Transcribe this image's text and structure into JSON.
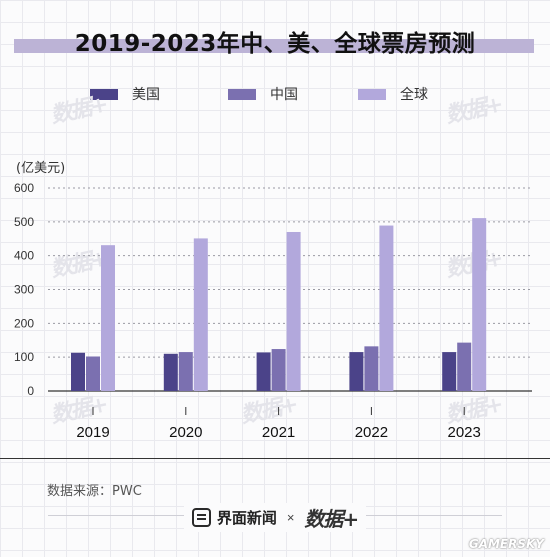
{
  "title": "2019-2023年中、美、全球票房预测",
  "unit_label": "(亿美元)",
  "source": "数据来源：PWC",
  "footer": {
    "brand": "界面新闻",
    "times": "×",
    "logo": "数据+"
  },
  "corner_watermark": "GAMERSKY",
  "watermark_text": "数据+",
  "colors": {
    "title_band": "#bcb3d6",
    "usa": "#4b4389",
    "china": "#7b70b0",
    "global": "#b2a8dc"
  },
  "chart_data": {
    "type": "bar",
    "categories": [
      "2019",
      "2020",
      "2021",
      "2022",
      "2023"
    ],
    "series": [
      {
        "name": "美国",
        "values": [
          113,
          110,
          114,
          115,
          115
        ]
      },
      {
        "name": "中国",
        "values": [
          102,
          115,
          124,
          132,
          143
        ]
      },
      {
        "name": "全球",
        "values": [
          431,
          451,
          470,
          489,
          511
        ]
      }
    ],
    "title": "2019-2023年中、美、全球票房预测",
    "xlabel": "",
    "ylabel": "(亿美元)",
    "ylim": [
      0,
      600
    ],
    "yticks": [
      0,
      100,
      200,
      300,
      400,
      500,
      600
    ],
    "grid": true,
    "legend": "top"
  }
}
